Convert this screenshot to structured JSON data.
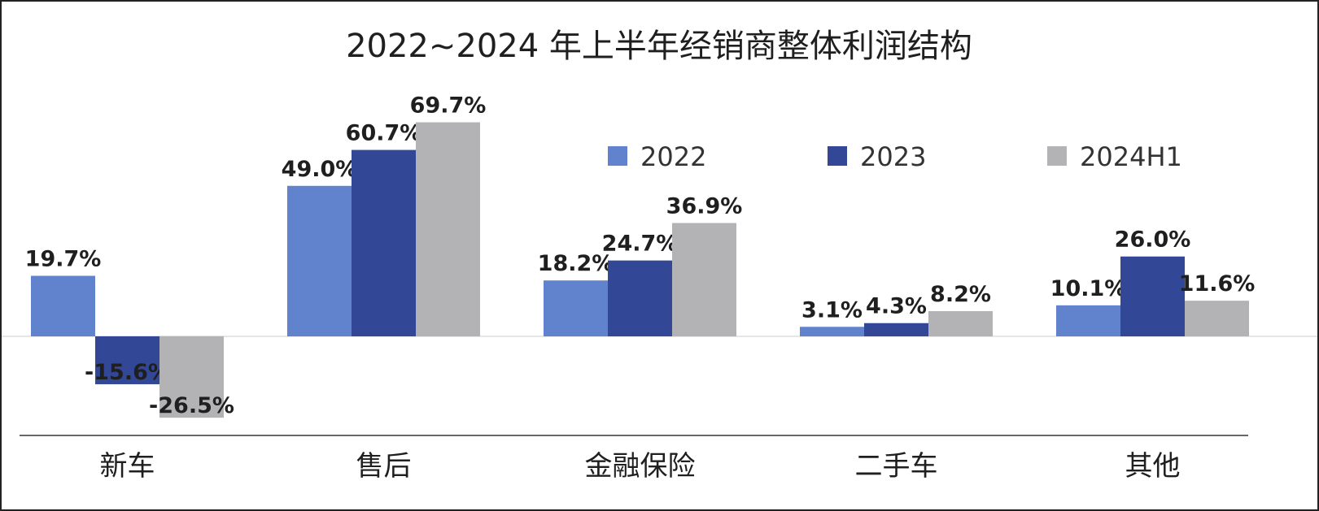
{
  "chart_data": {
    "type": "bar",
    "title": "2022~2024 年上半年经销商整体利润结构",
    "categories": [
      "新车",
      "售后",
      "金融保险",
      "二手车",
      "其他"
    ],
    "series": [
      {
        "name": "2022",
        "color": "#6182cc",
        "values": [
          19.7,
          49.0,
          18.2,
          3.1,
          10.1
        ],
        "labels": [
          "19.7%",
          "49.0%",
          "18.2%",
          "3.1%",
          "10.1%"
        ]
      },
      {
        "name": "2023",
        "color": "#324896",
        "values": [
          -15.6,
          60.7,
          24.7,
          4.3,
          26.0
        ],
        "labels": [
          "-15.6%",
          "60.7%",
          "24.7%",
          "4.3%",
          "26.0%"
        ]
      },
      {
        "name": "2024H1",
        "color": "#b3b3b6",
        "values": [
          -26.5,
          69.7,
          36.9,
          8.2,
          11.6
        ],
        "labels": [
          "-26.5%",
          "69.7%",
          "36.9%",
          "8.2%",
          "11.6%"
        ]
      }
    ],
    "unit": "%",
    "ylim": [
      -30,
      75
    ],
    "legend": "top-right",
    "grid": false
  }
}
